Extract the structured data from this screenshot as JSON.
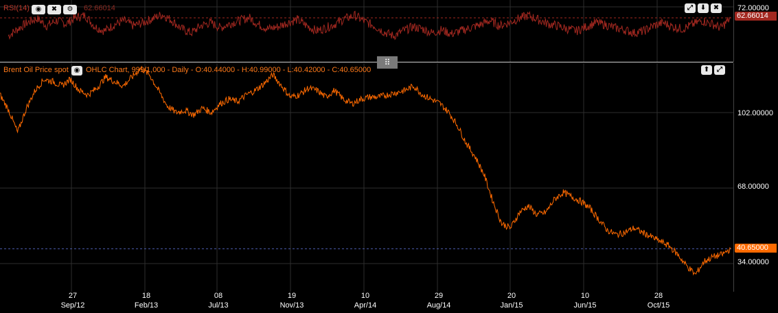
{
  "rsi": {
    "title": "RSI(14)",
    "value": "62.66014",
    "axis_label": "72.00000",
    "tag": "62.66014",
    "color": "#a32820",
    "buttons": [
      {
        "name": "eye-icon",
        "glyph": "◉"
      },
      {
        "name": "close-icon",
        "glyph": "✖"
      },
      {
        "name": "gear-icon",
        "glyph": "⚙"
      }
    ],
    "right_buttons": [
      {
        "name": "maximize-icon",
        "glyph": "⤢"
      },
      {
        "name": "arrow-down-icon",
        "glyph": "⬇"
      },
      {
        "name": "close-icon",
        "glyph": "✖"
      }
    ]
  },
  "price": {
    "title": "Brent Oil Price  spot",
    "info": "OHLC Chart, 999/1,000 - Daily - O:40.44000 - H:40.99000 - L:40.42000 - C:40.65000",
    "tag": "40.65000",
    "color": "#ff6a00",
    "y_labels": [
      "102.00000",
      "68.00000",
      "34.00000"
    ],
    "right_buttons": [
      {
        "name": "arrow-up-icon",
        "glyph": "⬆"
      },
      {
        "name": "maximize-icon",
        "glyph": "⤢"
      }
    ]
  },
  "splitter_glyph": "⠿",
  "x_ticks": [
    {
      "day": "27",
      "month": "Sep/12"
    },
    {
      "day": "18",
      "month": "Feb/13"
    },
    {
      "day": "08",
      "month": "Jul/13"
    },
    {
      "day": "19",
      "month": "Nov/13"
    },
    {
      "day": "10",
      "month": "Apr/14"
    },
    {
      "day": "29",
      "month": "Aug/14"
    },
    {
      "day": "20",
      "month": "Jan/15"
    },
    {
      "day": "10",
      "month": "Jun/15"
    },
    {
      "day": "28",
      "month": "Oct/15"
    }
  ],
  "chart_data": [
    {
      "type": "line",
      "series": [
        {
          "name": "RSI(14)",
          "values": [
            45,
            52,
            58,
            62,
            55,
            60,
            57,
            63,
            65,
            54,
            50,
            56,
            60,
            55,
            58,
            62,
            66,
            60,
            52,
            48,
            55,
            58,
            53,
            57,
            60,
            63,
            56,
            52,
            54,
            58,
            61,
            55,
            50,
            53,
            57,
            62,
            65,
            59,
            55,
            49,
            45,
            50,
            54,
            52,
            48,
            51,
            47,
            50,
            53,
            56,
            60,
            55,
            58,
            62,
            65,
            61,
            57,
            55,
            52,
            50,
            54,
            58,
            56,
            53,
            51,
            48,
            50,
            55,
            58,
            54,
            52,
            56,
            60,
            57,
            53,
            62.66
          ]
        }
      ],
      "ylabel_value": 72
    },
    {
      "type": "line",
      "series": [
        {
          "name": "Brent Oil Price  spot",
          "values": [
            110,
            103,
            93,
            104,
            112,
            117,
            116,
            114,
            117,
            112,
            110,
            113,
            118,
            116,
            114,
            118,
            122,
            119,
            112,
            105,
            102,
            103,
            101,
            104,
            102,
            106,
            108,
            107,
            110,
            112,
            115,
            119,
            114,
            109,
            110,
            113,
            112,
            109,
            112,
            108,
            106,
            108,
            109,
            109,
            110,
            111,
            112,
            114,
            110,
            108,
            106,
            102,
            96,
            88,
            82,
            74,
            62,
            52,
            50,
            57,
            60,
            56,
            57,
            63,
            66,
            64,
            62,
            59,
            54,
            49,
            47,
            48,
            50,
            48,
            46,
            44,
            42,
            38,
            33,
            29,
            35,
            37,
            38,
            40.65
          ]
        }
      ],
      "y_ticks": [
        102,
        68,
        34
      ],
      "x_ticks": [
        "Sep/12",
        "Feb/13",
        "Jul/13",
        "Nov/13",
        "Apr/14",
        "Aug/14",
        "Jan/15",
        "Jun/15",
        "Oct/15"
      ]
    }
  ]
}
